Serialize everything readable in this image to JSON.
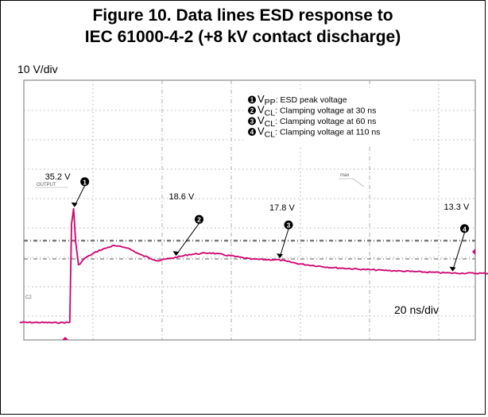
{
  "title_line1": "Figure 10. Data lines ESD response to",
  "title_line2": "IEC 61000-4-2 (+8 kV contact discharge)",
  "y_scale_label": "10 V/div",
  "x_scale_label": "20 ns/div",
  "scope_labels": {
    "output": "OUTPUT",
    "max": "max",
    "channel": "C2"
  },
  "legend": [
    {
      "num": "1",
      "symbol": "V",
      "sub": "PP",
      "text": ": ESD peak voltage"
    },
    {
      "num": "2",
      "symbol": "V",
      "sub": "CL",
      "text": ": Clamping voltage at 30 ns"
    },
    {
      "num": "3",
      "symbol": "V",
      "sub": "CL",
      "text": ": Clamping voltage at 60 ns"
    },
    {
      "num": "4",
      "symbol": "V",
      "sub": "CL",
      "text": ": Clamping voltage at 110 ns"
    }
  ],
  "chart_data": {
    "type": "line",
    "x_unit": "ns",
    "y_unit": "V",
    "x_per_div": 20,
    "y_per_div": 10,
    "series": [
      {
        "color": "#d0006f",
        "points": [
          [
            -15,
            -3.5
          ],
          [
            -10,
            -3.5
          ],
          [
            -5,
            -3.6
          ],
          [
            -0.5,
            -3.5
          ],
          [
            0,
            30
          ],
          [
            0.6,
            35.2
          ],
          [
            1.2,
            24
          ],
          [
            2,
            16
          ],
          [
            4,
            18.5
          ],
          [
            8,
            21
          ],
          [
            12,
            22.6
          ],
          [
            16,
            22.0
          ],
          [
            20,
            19.5
          ],
          [
            25,
            17.5
          ],
          [
            30,
            18.6
          ],
          [
            34,
            19.6
          ],
          [
            40,
            20.2
          ],
          [
            46,
            19.2
          ],
          [
            52,
            18.0
          ],
          [
            60,
            17.8
          ],
          [
            66,
            16.4
          ],
          [
            75,
            15.2
          ],
          [
            85,
            14.5
          ],
          [
            95,
            14.0
          ],
          [
            105,
            13.5
          ],
          [
            110,
            13.3
          ],
          [
            120,
            13.2
          ],
          [
            135,
            12.4
          ],
          [
            150,
            11.9
          ],
          [
            160,
            11.5
          ],
          [
            168,
            11.3
          ],
          [
            172,
            8.8
          ],
          [
            175,
            11.2
          ],
          [
            185,
            11.6
          ],
          [
            200,
            12.1
          ],
          [
            205,
            12.3
          ],
          [
            206,
            16.8
          ]
        ]
      }
    ],
    "annotations": [
      {
        "num": "1",
        "label": "35.2 V",
        "x": 0.6,
        "y": 35.2
      },
      {
        "num": "2",
        "label": "18.6 V",
        "x": 30,
        "y": 18.6
      },
      {
        "num": "3",
        "label": "17.8 V",
        "x": 60,
        "y": 17.8
      },
      {
        "num": "4",
        "label": "13.3 V",
        "x": 110,
        "y": 13.3
      }
    ],
    "grid": true
  }
}
